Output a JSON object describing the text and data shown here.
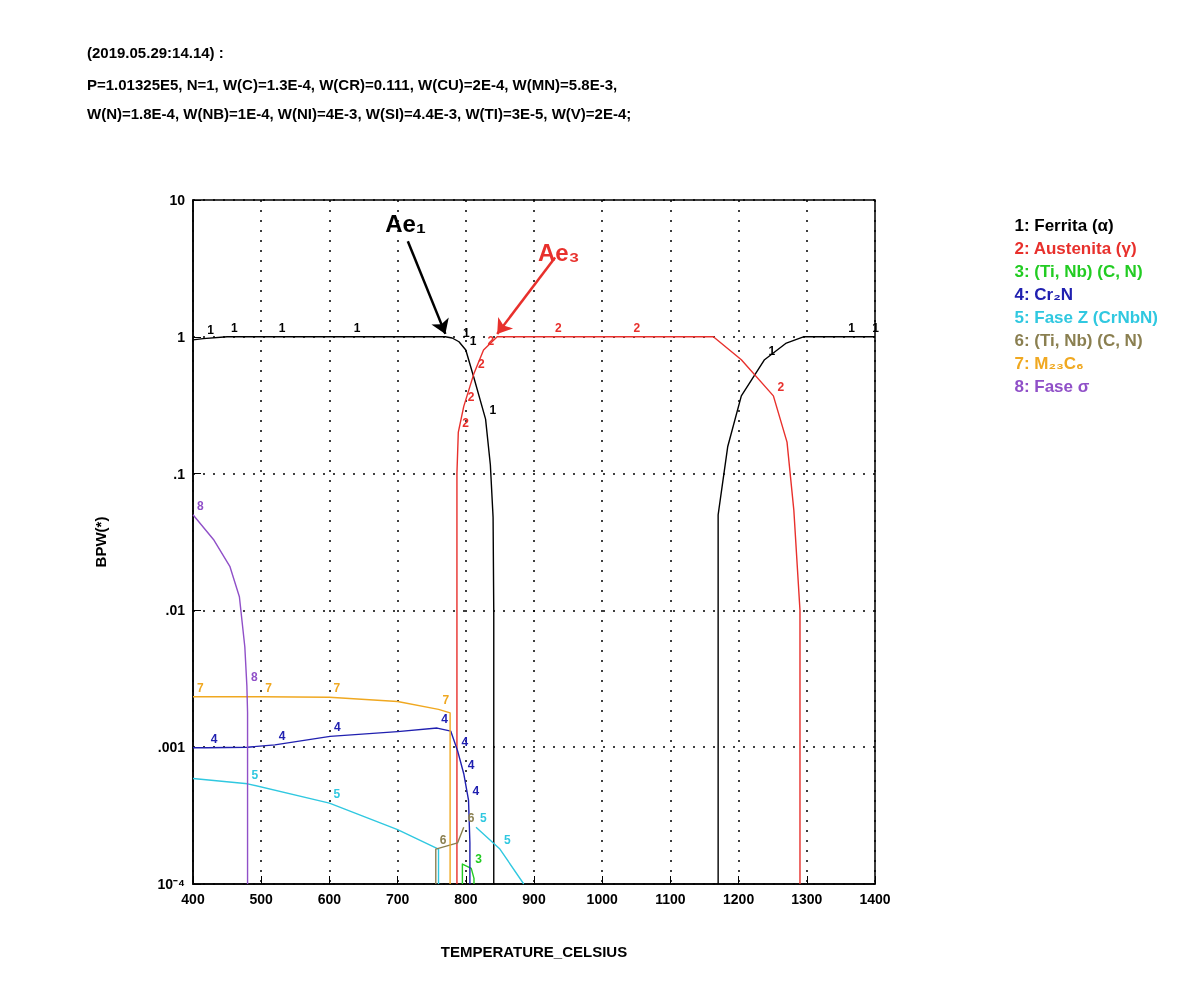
{
  "chart_data": {
    "type": "line",
    "title": "(2019.05.29:14.14) :",
    "subtitle": "P=1.01325E5, N=1, W(C)=1.3E-4, W(CR)=0.111, W(CU)=2E-4, W(MN)=5.8E-3,\nW(N)=1.8E-4, W(NB)=1E-4, W(NI)=4E-3, W(SI)=4.4E-3, W(TI)=3E-5, W(V)=2E-4;",
    "xlabel": "TEMPERATURE_CELSIUS",
    "ylabel": "BPW(*)",
    "log": "y",
    "grid": true,
    "legend": "right",
    "xlim": [
      400,
      1400
    ],
    "xticks": [
      400,
      500,
      600,
      700,
      800,
      900,
      1000,
      1100,
      1200,
      1300,
      1400
    ],
    "ylim": [
      0.0001,
      10
    ],
    "yticks": [
      {
        "value": 0.0001,
        "label": "10⁻⁴"
      },
      {
        "value": 0.001,
        "label": ".001"
      },
      {
        "value": 0.01,
        "label": ".01"
      },
      {
        "value": 0.1,
        "label": ".1"
      },
      1,
      10
    ],
    "annotations": [
      {
        "text": "Ae₁",
        "x": 770,
        "y": 1
      },
      {
        "text": "Ae₃",
        "x": 846,
        "y": 1
      },
      {
        "text": "1",
        "x": 415,
        "y": 0.97
      },
      {
        "text": "1",
        "x": 450,
        "y": 1
      },
      {
        "text": "1",
        "x": 520,
        "y": 1
      },
      {
        "text": "1",
        "x": 630,
        "y": 1
      },
      {
        "text": "1",
        "x": 790,
        "y": 0.92
      },
      {
        "text": "1",
        "x": 800,
        "y": 0.8
      },
      {
        "text": "1",
        "x": 829,
        "y": 0.25
      },
      {
        "text": "1",
        "x": 1238,
        "y": 0.68
      },
      {
        "text": "1",
        "x": 1355,
        "y": 1
      },
      {
        "text": "1",
        "x": 1390,
        "y": 1
      },
      {
        "text": "2",
        "x": 789,
        "y": 0.2
      },
      {
        "text": "2",
        "x": 797,
        "y": 0.31
      },
      {
        "text": "2",
        "x": 812,
        "y": 0.54
      },
      {
        "text": "2",
        "x": 826,
        "y": 0.8
      },
      {
        "text": "2",
        "x": 925,
        "y": 1
      },
      {
        "text": "2",
        "x": 1040,
        "y": 1
      },
      {
        "text": "2",
        "x": 1251,
        "y": 0.37
      },
      {
        "text": "3",
        "x": 808,
        "y": 0.00013
      },
      {
        "text": "4",
        "x": 420,
        "y": 0.00099
      },
      {
        "text": "4",
        "x": 520,
        "y": 0.00104
      },
      {
        "text": "4",
        "x": 601,
        "y": 0.0012
      },
      {
        "text": "4",
        "x": 758,
        "y": 0.00138
      },
      {
        "text": "4",
        "x": 788,
        "y": 0.00094
      },
      {
        "text": "4",
        "x": 797,
        "y": 0.00064
      },
      {
        "text": "4",
        "x": 804,
        "y": 0.00041
      },
      {
        "text": "5",
        "x": 480,
        "y": 0.00054
      },
      {
        "text": "5",
        "x": 600,
        "y": 0.00039
      },
      {
        "text": "5",
        "x": 815,
        "y": 0.00026
      },
      {
        "text": "5",
        "x": 850,
        "y": 0.00018
      },
      {
        "text": "6",
        "x": 756,
        "y": 0.00018
      },
      {
        "text": "6",
        "x": 797,
        "y": 0.00026
      },
      {
        "text": "7",
        "x": 400,
        "y": 0.00234
      },
      {
        "text": "7",
        "x": 500,
        "y": 0.00234
      },
      {
        "text": "7",
        "x": 600,
        "y": 0.00232
      },
      {
        "text": "7",
        "x": 760,
        "y": 0.00189
      },
      {
        "text": "8",
        "x": 400,
        "y": 0.05
      },
      {
        "text": "8",
        "x": 479,
        "y": 0.0028
      }
    ],
    "series": [
      {
        "name": "1: Ferrita (α)",
        "color": "#000000",
        "x": [
          400,
          415,
          450,
          520,
          630,
          770,
          780,
          790,
          800,
          812,
          829,
          836,
          840,
          841,
          841,
          1000,
          1170,
          1170,
          1184,
          1204,
          1238,
          1270,
          1295,
          1355,
          1390,
          1400
        ],
        "values": [
          0.95,
          0.97,
          1,
          1,
          1,
          1,
          0.98,
          0.92,
          0.8,
          0.5,
          0.25,
          0.116,
          0.048,
          0.01,
          0.0001,
          null,
          0.0001,
          0.05,
          0.157,
          0.37,
          0.68,
          0.9,
          1,
          1,
          1,
          1
        ]
      },
      {
        "name": "2: Austenita (γ)",
        "color": "#e8302c",
        "x": [
          787,
          787,
          789,
          797,
          812,
          826,
          846,
          925,
          1040,
          1163,
          1204,
          1251,
          1271,
          1281,
          1290,
          1290
        ],
        "values": [
          0.0001,
          0.1,
          0.2,
          0.31,
          0.54,
          0.8,
          1,
          1,
          1,
          1,
          0.68,
          0.37,
          0.17,
          0.054,
          0.01,
          0.0001
        ]
      },
      {
        "name": "3: (Ti, Nb) (C, N)",
        "color": "#22cc22",
        "x": [
          795,
          795,
          808,
          812,
          812
        ],
        "values": [
          0.0001,
          0.00014,
          0.00013,
          0.00011,
          0.0001
        ]
      },
      {
        "name": "4: Cr₂N",
        "color": "#2020b0",
        "x": [
          400,
          420,
          480,
          520,
          601,
          700,
          758,
          778,
          788,
          797,
          804,
          806,
          806
        ],
        "values": [
          0.00099,
          0.00099,
          0.001,
          0.00104,
          0.0012,
          0.0013,
          0.00138,
          0.00131,
          0.00094,
          0.00064,
          0.00041,
          0.0002,
          0.0001
        ]
      },
      {
        "name": "5: Fase Z (CrNbN)",
        "color": "#30c8e0",
        "x": [
          400,
          480,
          600,
          700,
          760,
          760,
          790,
          815,
          850,
          885
        ],
        "values": [
          0.00059,
          0.00054,
          0.00039,
          0.00025,
          0.00018,
          0.0001,
          null,
          0.00026,
          0.00018,
          0.0001
        ]
      },
      {
        "name": "6: (Ti, Nb) (C, N)",
        "color": "#8a7f50",
        "x": [
          756,
          756,
          788,
          797
        ],
        "values": [
          0.0001,
          0.00018,
          0.0002,
          0.00026
        ]
      },
      {
        "name": "7: M₂₃C₆",
        "color": "#f0a820",
        "x": [
          400,
          500,
          600,
          700,
          760,
          777,
          777
        ],
        "values": [
          0.00234,
          0.00234,
          0.00232,
          0.00216,
          0.00189,
          0.00178,
          0.0001
        ]
      },
      {
        "name": "8: Fase σ",
        "color": "#9050c8",
        "x": [
          400,
          430,
          454,
          468,
          476,
          479,
          480,
          480
        ],
        "values": [
          0.05,
          0.033,
          0.021,
          0.0126,
          0.0054,
          0.0028,
          0.0018,
          0.0001
        ]
      }
    ]
  }
}
